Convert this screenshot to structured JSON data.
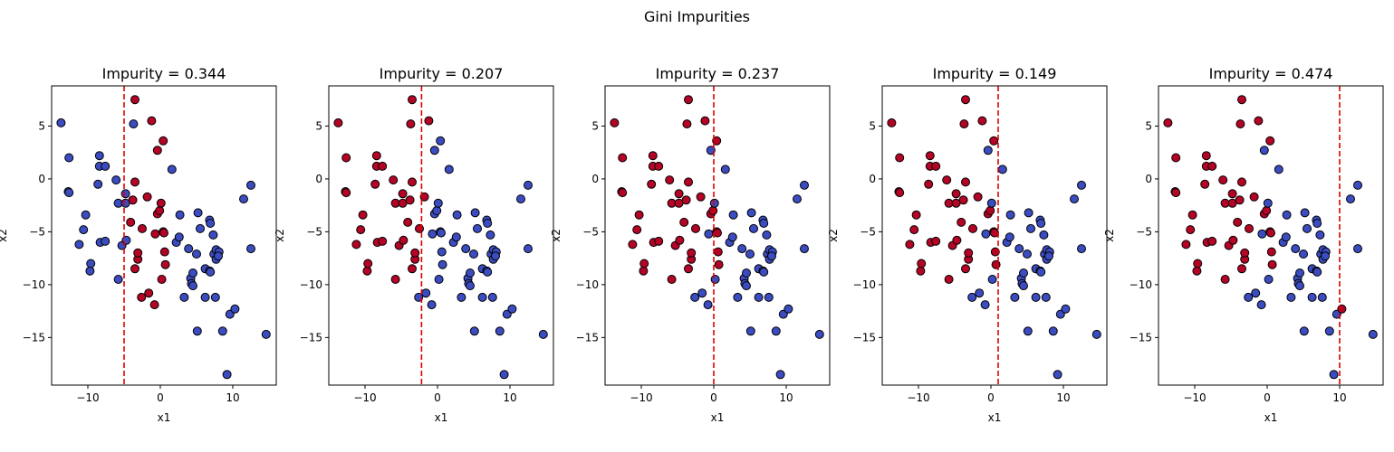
{
  "figure": {
    "suptitle": "Gini Impurities"
  },
  "chart_data": {
    "type": "scatter",
    "xlabel": "x1",
    "ylabel": "x2",
    "xlim": [
      -15,
      16
    ],
    "ylim": [
      -19.5,
      8.8
    ],
    "xticks": [
      -10,
      0,
      10
    ],
    "yticks": [
      5,
      0,
      -5,
      -10,
      -15
    ],
    "colors": {
      "class0": "#3b4cc0",
      "class1": "#b40426",
      "split": "#e00000"
    },
    "points": [
      [
        -13.7,
        5.3
      ],
      [
        -12.6,
        2.0
      ],
      [
        -12.7,
        -1.2
      ],
      [
        -12.6,
        -1.3
      ],
      [
        -11.2,
        -6.2
      ],
      [
        -10.3,
        -3.4
      ],
      [
        -10.6,
        -4.8
      ],
      [
        -9.7,
        -8.7
      ],
      [
        -9.6,
        -8.0
      ],
      [
        -8.4,
        2.2
      ],
      [
        -8.4,
        1.2
      ],
      [
        -8.6,
        -0.5
      ],
      [
        -8.3,
        -6.0
      ],
      [
        -7.6,
        1.2
      ],
      [
        -7.6,
        -5.9
      ],
      [
        -6.1,
        -0.1
      ],
      [
        -5.8,
        -2.3
      ],
      [
        -5.8,
        -9.5
      ],
      [
        -5.3,
        -6.3
      ],
      [
        -4.7,
        -5.8
      ],
      [
        -4.8,
        -1.4
      ],
      [
        -4.8,
        -2.3
      ],
      [
        -3.7,
        5.2
      ],
      [
        -3.5,
        7.5
      ],
      [
        -3.5,
        -0.3
      ],
      [
        -4.1,
        -4.1
      ],
      [
        -3.8,
        -2.0
      ],
      [
        -3.5,
        -8.5
      ],
      [
        -3.1,
        -7.6
      ],
      [
        -3.1,
        -7.0
      ],
      [
        -2.5,
        -4.7
      ],
      [
        -2.6,
        -11.2
      ],
      [
        -1.8,
        -1.7
      ],
      [
        -1.2,
        5.5
      ],
      [
        -1.6,
        -10.8
      ],
      [
        -0.8,
        -11.9
      ],
      [
        -0.4,
        -3.3
      ],
      [
        -0.1,
        -3.0
      ],
      [
        -0.7,
        -5.2
      ],
      [
        0.1,
        -2.3
      ],
      [
        0.4,
        3.6
      ],
      [
        0.4,
        -5.0
      ],
      [
        -0.4,
        2.7
      ],
      [
        0.5,
        -5.1
      ],
      [
        0.6,
        -6.9
      ],
      [
        0.7,
        -8.1
      ],
      [
        0.2,
        -9.5
      ],
      [
        1.6,
        0.9
      ],
      [
        2.2,
        -6.0
      ],
      [
        2.6,
        -5.5
      ],
      [
        2.7,
        -3.4
      ],
      [
        3.3,
        -11.2
      ],
      [
        3.9,
        -6.6
      ],
      [
        4.2,
        -9.4
      ],
      [
        4.3,
        -9.9
      ],
      [
        4.5,
        -8.9
      ],
      [
        4.5,
        -10.1
      ],
      [
        5.2,
        -3.2
      ],
      [
        5.5,
        -4.7
      ],
      [
        5.0,
        -7.1
      ],
      [
        5.1,
        -14.4
      ],
      [
        6.2,
        -8.5
      ],
      [
        6.2,
        -11.2
      ],
      [
        6.8,
        -3.9
      ],
      [
        6.9,
        -4.2
      ],
      [
        6.8,
        -8.7
      ],
      [
        6.9,
        -8.8
      ],
      [
        7.3,
        -5.3
      ],
      [
        7.4,
        -7.1
      ],
      [
        7.7,
        -6.7
      ],
      [
        7.7,
        -7.6
      ],
      [
        7.6,
        -11.2
      ],
      [
        8.1,
        -6.9
      ],
      [
        8.0,
        -7.3
      ],
      [
        8.6,
        -14.4
      ],
      [
        9.2,
        -18.5
      ],
      [
        9.6,
        -12.8
      ],
      [
        10.3,
        -12.3
      ],
      [
        11.5,
        -1.9
      ],
      [
        12.5,
        -0.6
      ],
      [
        12.5,
        -6.6
      ],
      [
        14.6,
        -14.7
      ]
    ],
    "panels": [
      {
        "title": "Impurity = 0.344",
        "split_x": -5.0,
        "class1_indices": [
          23,
          24,
          25,
          26,
          27,
          28,
          29,
          30,
          31,
          32,
          33,
          34,
          35,
          36,
          37,
          38,
          39,
          40,
          41,
          42,
          43,
          44,
          45,
          46
        ]
      },
      {
        "title": "Impurity = 0.207",
        "split_x": -2.2,
        "class1_indices": [
          0,
          1,
          2,
          3,
          4,
          5,
          6,
          7,
          8,
          9,
          10,
          11,
          12,
          13,
          14,
          15,
          16,
          17,
          18,
          19,
          20,
          21,
          22,
          23,
          24,
          25,
          26,
          27,
          28,
          29,
          30,
          32,
          33
        ]
      },
      {
        "title": "Impurity = 0.237",
        "split_x": 0.0,
        "class1_indices": [
          0,
          1,
          2,
          3,
          4,
          5,
          6,
          7,
          8,
          9,
          10,
          11,
          12,
          13,
          14,
          15,
          16,
          17,
          18,
          19,
          20,
          21,
          22,
          23,
          24,
          25,
          26,
          27,
          28,
          29,
          30,
          32,
          33,
          36,
          37,
          40,
          41,
          43,
          44,
          45
        ]
      },
      {
        "title": "Impurity = 0.149",
        "split_x": 1.0,
        "class1_indices": [
          0,
          1,
          2,
          3,
          4,
          5,
          6,
          7,
          8,
          9,
          10,
          11,
          12,
          13,
          14,
          15,
          16,
          17,
          18,
          19,
          20,
          21,
          22,
          23,
          24,
          25,
          26,
          27,
          28,
          29,
          30,
          32,
          33,
          36,
          37,
          40,
          41,
          43,
          44,
          45
        ]
      },
      {
        "title": "Impurity = 0.474",
        "split_x": 10.0,
        "class1_indices": [
          0,
          1,
          2,
          3,
          4,
          5,
          6,
          7,
          8,
          9,
          10,
          11,
          12,
          13,
          14,
          15,
          16,
          17,
          18,
          19,
          20,
          21,
          22,
          23,
          24,
          25,
          26,
          27,
          28,
          29,
          30,
          32,
          33,
          36,
          37,
          40,
          41,
          43,
          44,
          45,
          77
        ]
      }
    ]
  }
}
